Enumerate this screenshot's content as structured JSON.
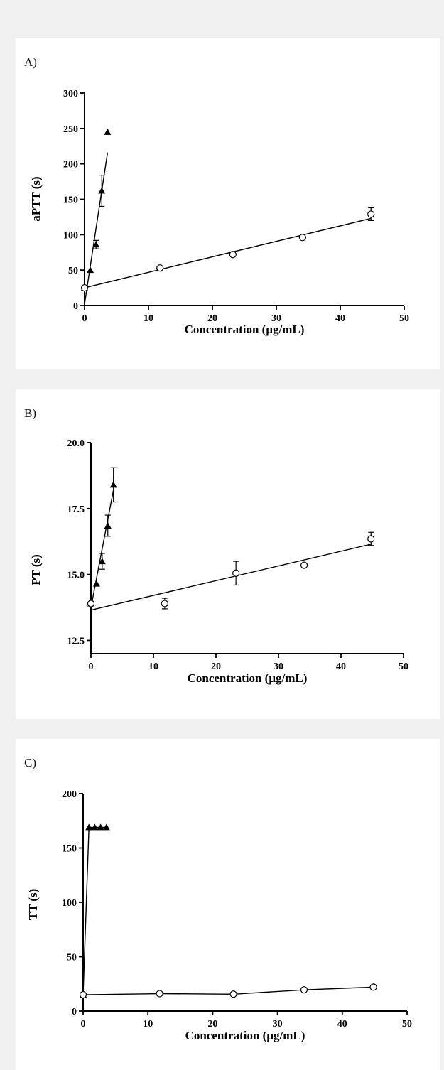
{
  "chart_data": [
    {
      "panel_label": "A)",
      "type": "scatter",
      "xlabel": "Concentration (μg/mL)",
      "ylabel": "aPTT (s)",
      "xlim": [
        0,
        50
      ],
      "ylim": [
        0,
        300
      ],
      "x_ticks": [
        0,
        10,
        20,
        30,
        40,
        50
      ],
      "y_ticks": [
        0,
        50,
        100,
        150,
        200,
        250,
        300
      ],
      "series": [
        {
          "marker": "triangle",
          "points": [
            {
              "x": 0,
              "y": 25,
              "err": 0
            },
            {
              "x": 0.9,
              "y": 50,
              "err": 0
            },
            {
              "x": 1.8,
              "y": 86,
              "err": 6
            },
            {
              "x": 2.7,
              "y": 162,
              "err": 22
            },
            {
              "x": 3.6,
              "y": 245,
              "err": 0
            }
          ],
          "fit": {
            "type": "linear",
            "x": [
              0,
              3.6
            ],
            "y": [
              2,
              216
            ]
          }
        },
        {
          "marker": "circle",
          "points": [
            {
              "x": 0,
              "y": 25,
              "err": 0
            },
            {
              "x": 11.8,
              "y": 53,
              "err": 0
            },
            {
              "x": 23.2,
              "y": 72,
              "err": 0
            },
            {
              "x": 34.1,
              "y": 96,
              "err": 0
            },
            {
              "x": 44.8,
              "y": 129,
              "err": 9
            }
          ],
          "fit": {
            "type": "linear",
            "x": [
              0,
              44.8
            ],
            "y": [
              25,
              123
            ]
          }
        }
      ]
    },
    {
      "panel_label": "B)",
      "type": "scatter",
      "xlabel": "Concentration (μg/mL)",
      "ylabel": "PT (s)",
      "xlim": [
        0,
        50
      ],
      "ylim": [
        12,
        20
      ],
      "x_ticks": [
        0,
        10,
        20,
        30,
        40,
        50
      ],
      "y_ticks": [
        12.5,
        15.0,
        17.5,
        20.0
      ],
      "y_tick_labels": [
        "12.5",
        "15.0",
        "17.5",
        "20.0"
      ],
      "series": [
        {
          "marker": "triangle",
          "points": [
            {
              "x": 0,
              "y": 13.9,
              "err": 0
            },
            {
              "x": 0.9,
              "y": 14.65,
              "err": 0
            },
            {
              "x": 1.8,
              "y": 15.5,
              "err": 0.3
            },
            {
              "x": 2.7,
              "y": 16.85,
              "err": 0.4
            },
            {
              "x": 3.6,
              "y": 18.4,
              "err": 0.65
            }
          ],
          "fit": {
            "type": "linear",
            "x": [
              0,
              3.6
            ],
            "y": [
              13.75,
              18.2
            ]
          }
        },
        {
          "marker": "circle",
          "points": [
            {
              "x": 0,
              "y": 13.9,
              "err": 0
            },
            {
              "x": 11.8,
              "y": 13.9,
              "err": 0.2
            },
            {
              "x": 23.2,
              "y": 15.05,
              "err": 0.45
            },
            {
              "x": 34.1,
              "y": 15.35,
              "err": 0
            },
            {
              "x": 44.8,
              "y": 16.35,
              "err": 0.25
            }
          ],
          "fit": {
            "type": "linear",
            "x": [
              0,
              44.8
            ],
            "y": [
              13.65,
              16.15
            ]
          }
        }
      ]
    },
    {
      "panel_label": "C)",
      "type": "line",
      "xlabel": "Concentration (μg/mL)",
      "ylabel": "TT (s)",
      "xlim": [
        0,
        50
      ],
      "ylim": [
        0,
        200
      ],
      "x_ticks": [
        0,
        10,
        20,
        30,
        40,
        50
      ],
      "y_ticks": [
        0,
        50,
        100,
        150,
        200
      ],
      "series": [
        {
          "marker": "triangle",
          "points": [
            {
              "x": 0,
              "y": 15,
              "err": 0
            },
            {
              "x": 0.9,
              "y": 169,
              "err": 0
            },
            {
              "x": 1.8,
              "y": 169,
              "err": 0
            },
            {
              "x": 2.7,
              "y": 169,
              "err": 0
            },
            {
              "x": 3.6,
              "y": 169,
              "err": 0
            }
          ]
        },
        {
          "marker": "circle",
          "points": [
            {
              "x": 0,
              "y": 15,
              "err": 0
            },
            {
              "x": 11.8,
              "y": 16,
              "err": 0
            },
            {
              "x": 23.2,
              "y": 15.5,
              "err": 0
            },
            {
              "x": 34.1,
              "y": 19.5,
              "err": 0
            },
            {
              "x": 44.8,
              "y": 22,
              "err": 0
            }
          ]
        }
      ]
    }
  ]
}
